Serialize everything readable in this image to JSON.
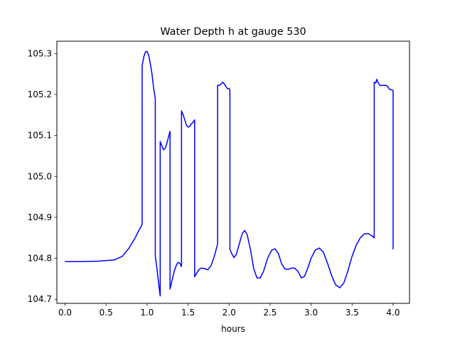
{
  "chart_data": {
    "type": "line",
    "title": "Water Depth h at gauge 530",
    "xlabel": "hours",
    "ylabel": "",
    "xlim": [
      -0.1,
      4.2
    ],
    "ylim": [
      104.69,
      105.33
    ],
    "x_ticks": [
      0.0,
      0.5,
      1.0,
      1.5,
      2.0,
      2.5,
      3.0,
      3.5,
      4.0
    ],
    "x_tick_labels": [
      "0.0",
      "0.5",
      "1.0",
      "1.5",
      "2.0",
      "2.5",
      "3.0",
      "3.5",
      "4.0"
    ],
    "y_ticks": [
      104.7,
      104.8,
      104.9,
      105.0,
      105.1,
      105.2,
      105.3
    ],
    "y_tick_labels": [
      "104.7",
      "104.8",
      "104.9",
      "105.0",
      "105.1",
      "105.2",
      "105.3"
    ],
    "grid": false,
    "series": [
      {
        "color": "#0000ff",
        "points": [
          [
            0.0,
            104.792
          ],
          [
            0.2,
            104.792
          ],
          [
            0.4,
            104.793
          ],
          [
            0.6,
            104.796
          ],
          [
            0.7,
            104.805
          ],
          [
            0.78,
            104.825
          ],
          [
            0.85,
            104.848
          ],
          [
            0.9,
            104.868
          ],
          [
            0.94,
            104.883
          ],
          [
            0.94,
            105.27
          ],
          [
            0.96,
            105.292
          ],
          [
            0.98,
            105.304
          ],
          [
            1.0,
            105.305
          ],
          [
            1.02,
            105.295
          ],
          [
            1.04,
            105.275
          ],
          [
            1.06,
            105.25
          ],
          [
            1.08,
            105.215
          ],
          [
            1.1,
            105.19
          ],
          [
            1.1,
            104.805
          ],
          [
            1.12,
            104.775
          ],
          [
            1.14,
            104.74
          ],
          [
            1.16,
            104.708
          ],
          [
            1.16,
            105.085
          ],
          [
            1.18,
            105.075
          ],
          [
            1.2,
            105.065
          ],
          [
            1.22,
            105.068
          ],
          [
            1.24,
            105.08
          ],
          [
            1.26,
            105.095
          ],
          [
            1.28,
            105.11
          ],
          [
            1.28,
            104.725
          ],
          [
            1.3,
            104.742
          ],
          [
            1.33,
            104.768
          ],
          [
            1.36,
            104.785
          ],
          [
            1.38,
            104.79
          ],
          [
            1.4,
            104.788
          ],
          [
            1.42,
            104.78
          ],
          [
            1.42,
            105.16
          ],
          [
            1.44,
            105.15
          ],
          [
            1.46,
            105.138
          ],
          [
            1.48,
            105.125
          ],
          [
            1.5,
            105.12
          ],
          [
            1.52,
            105.122
          ],
          [
            1.54,
            105.128
          ],
          [
            1.56,
            105.132
          ],
          [
            1.58,
            105.138
          ],
          [
            1.58,
            104.755
          ],
          [
            1.6,
            104.762
          ],
          [
            1.63,
            104.772
          ],
          [
            1.66,
            104.776
          ],
          [
            1.7,
            104.775
          ],
          [
            1.74,
            104.772
          ],
          [
            1.78,
            104.782
          ],
          [
            1.82,
            104.805
          ],
          [
            1.86,
            104.835
          ],
          [
            1.86,
            105.222
          ],
          [
            1.88,
            105.222
          ],
          [
            1.9,
            105.225
          ],
          [
            1.92,
            105.23
          ],
          [
            1.94,
            105.226
          ],
          [
            1.96,
            105.22
          ],
          [
            1.98,
            105.214
          ],
          [
            2.0,
            105.215
          ],
          [
            2.01,
            105.21
          ],
          [
            2.01,
            104.822
          ],
          [
            2.03,
            104.812
          ],
          [
            2.06,
            104.802
          ],
          [
            2.09,
            104.81
          ],
          [
            2.12,
            104.832
          ],
          [
            2.16,
            104.86
          ],
          [
            2.19,
            104.868
          ],
          [
            2.22,
            104.858
          ],
          [
            2.26,
            104.822
          ],
          [
            2.3,
            104.775
          ],
          [
            2.34,
            104.752
          ],
          [
            2.38,
            104.752
          ],
          [
            2.42,
            104.768
          ],
          [
            2.47,
            104.8
          ],
          [
            2.52,
            104.82
          ],
          [
            2.56,
            104.823
          ],
          [
            2.6,
            104.812
          ],
          [
            2.64,
            104.787
          ],
          [
            2.68,
            104.774
          ],
          [
            2.72,
            104.773
          ],
          [
            2.76,
            104.776
          ],
          [
            2.8,
            104.776
          ],
          [
            2.84,
            104.768
          ],
          [
            2.88,
            104.752
          ],
          [
            2.92,
            104.756
          ],
          [
            2.96,
            104.776
          ],
          [
            3.0,
            104.8
          ],
          [
            3.05,
            104.82
          ],
          [
            3.1,
            104.825
          ],
          [
            3.15,
            104.815
          ],
          [
            3.2,
            104.788
          ],
          [
            3.25,
            104.758
          ],
          [
            3.3,
            104.735
          ],
          [
            3.35,
            104.728
          ],
          [
            3.4,
            104.74
          ],
          [
            3.45,
            104.77
          ],
          [
            3.5,
            104.805
          ],
          [
            3.55,
            104.832
          ],
          [
            3.6,
            104.85
          ],
          [
            3.65,
            104.86
          ],
          [
            3.7,
            104.86
          ],
          [
            3.74,
            104.855
          ],
          [
            3.77,
            104.85
          ],
          [
            3.77,
            105.23
          ],
          [
            3.79,
            105.228
          ],
          [
            3.8,
            105.237
          ],
          [
            3.82,
            105.228
          ],
          [
            3.84,
            105.222
          ],
          [
            3.88,
            105.222
          ],
          [
            3.92,
            105.222
          ],
          [
            3.96,
            105.212
          ],
          [
            4.0,
            105.21
          ],
          [
            4.0,
            104.822
          ]
        ]
      }
    ]
  }
}
